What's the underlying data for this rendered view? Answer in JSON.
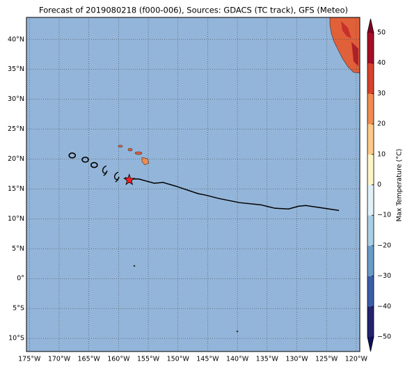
{
  "chart_data": {
    "type": "map",
    "title": "Forecast of 2019080218 (f000-006), Sources: GDACS (TC track), GFS (Meteo)",
    "xlim": [
      -175.5,
      -119.4
    ],
    "ylim": [
      -12.2,
      43.7
    ],
    "xticks": [
      {
        "value": -175,
        "label": "175°W"
      },
      {
        "value": -170,
        "label": "170°W"
      },
      {
        "value": -165,
        "label": "165°W"
      },
      {
        "value": -160,
        "label": "160°W"
      },
      {
        "value": -155,
        "label": "155°W"
      },
      {
        "value": -150,
        "label": "150°W"
      },
      {
        "value": -145,
        "label": "145°W"
      },
      {
        "value": -140,
        "label": "140°W"
      },
      {
        "value": -135,
        "label": "135°W"
      },
      {
        "value": -130,
        "label": "130°W"
      },
      {
        "value": -125,
        "label": "125°W"
      },
      {
        "value": -120,
        "label": "120°W"
      }
    ],
    "yticks": [
      {
        "value": -10,
        "label": "10°S"
      },
      {
        "value": -5,
        "label": "5°S"
      },
      {
        "value": 0,
        "label": "0°"
      },
      {
        "value": 5,
        "label": "5°N"
      },
      {
        "value": 10,
        "label": "10°N"
      },
      {
        "value": 15,
        "label": "15°N"
      },
      {
        "value": 20,
        "label": "20°N"
      },
      {
        "value": 25,
        "label": "25°N"
      },
      {
        "value": 30,
        "label": "30°N"
      },
      {
        "value": 35,
        "label": "35°N"
      },
      {
        "value": 40,
        "label": "40°N"
      }
    ],
    "grid": true,
    "ocean_color": "#93b5d9",
    "track": {
      "color": "#000000",
      "lon": [
        -158.9,
        -158.2,
        -156.6,
        -154.0,
        -152.5,
        -150.1,
        -146.6,
        -145.4,
        -143.1,
        -139.6,
        -136.1,
        -133.7,
        -131.4,
        -129.7,
        -128.5,
        -126.1,
        -122.9
      ],
      "lat": [
        16.9,
        16.66,
        16.66,
        15.96,
        16.08,
        15.38,
        14.21,
        13.98,
        13.4,
        12.7,
        12.35,
        11.77,
        11.65,
        12.11,
        12.23,
        11.88,
        11.4
      ]
    },
    "storm_positions": {
      "lon": [
        -167.8,
        -165.6,
        -164.1,
        -162.3,
        -160.3
      ],
      "lat": [
        20.6,
        19.9,
        19.0,
        18.05,
        17.0
      ]
    },
    "current_position": {
      "lon": -158.2,
      "lat": 16.5,
      "color": "#ff2020"
    },
    "colorbar": {
      "label": "Max Temperature (°C)",
      "lim": [
        -50,
        50
      ],
      "ticks": [
        {
          "value": -50,
          "label": "−50"
        },
        {
          "value": -40,
          "label": "−40"
        },
        {
          "value": -30,
          "label": "−30"
        },
        {
          "value": -20,
          "label": "−20"
        },
        {
          "value": -10,
          "label": "−10"
        },
        0,
        10,
        20,
        30,
        40,
        50
      ],
      "colors": [
        "#23236e",
        "#3a5fa8",
        "#6a9bc9",
        "#a8cfe3",
        "#e0f1f7",
        "#fdf5c8",
        "#fcc98a",
        "#f08c52",
        "#d7422b",
        "#a50f26"
      ],
      "under_color": "#101060",
      "over_color": "#7d0022"
    }
  }
}
